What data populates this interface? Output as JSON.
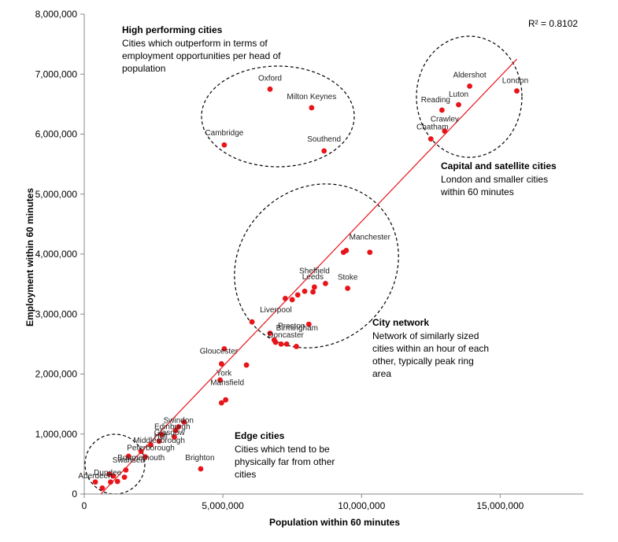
{
  "chart_data": {
    "type": "scatter",
    "xlabel": "Population within 60 minutes",
    "ylabel": "Employment within 60 minutes",
    "xlim": [
      0,
      18000000
    ],
    "ylim": [
      0,
      8000000
    ],
    "x_ticks": [
      0,
      5000000,
      10000000,
      15000000
    ],
    "x_tick_labels": [
      "0",
      "5,000,000",
      "10,000,000",
      "15,000,000"
    ],
    "y_ticks": [
      0,
      1000000,
      2000000,
      3000000,
      4000000,
      5000000,
      6000000,
      7000000,
      8000000
    ],
    "y_tick_labels": [
      "0",
      "1,000,000",
      "2,000,000",
      "3,000,000",
      "4,000,000",
      "5,000,000",
      "6,000,000",
      "7,000,000",
      "8,000,000"
    ],
    "grid": false,
    "marker_color": "#e8141a",
    "trendline_color": "#e8141a",
    "trendline": {
      "x1": 600000,
      "y1": 0,
      "x2": 15600000,
      "y2": 7250000
    },
    "r_squared": "R² = 0.8102",
    "points": [
      {
        "label": "London",
        "x": 15600000,
        "y": 6720000
      },
      {
        "label": "Aldershot",
        "x": 13900000,
        "y": 6800000
      },
      {
        "label": "Luton",
        "x": 13500000,
        "y": 6490000
      },
      {
        "label": "Reading",
        "x": 12900000,
        "y": 6400000
      },
      {
        "label": "Crawley",
        "x": 13000000,
        "y": 6050000
      },
      {
        "label": "Chatham",
        "x": 12500000,
        "y": 5920000
      },
      {
        "label": "Oxford",
        "x": 6700000,
        "y": 6750000
      },
      {
        "label": "Milton Keynes",
        "x": 8200000,
        "y": 6440000
      },
      {
        "label": "Cambridge",
        "x": 5050000,
        "y": 5820000
      },
      {
        "label": "Southend",
        "x": 8650000,
        "y": 5720000
      },
      {
        "label": "Manchester",
        "x": 10300000,
        "y": 4030000
      },
      {
        "label": "",
        "x": 9450000,
        "y": 4060000
      },
      {
        "label": "",
        "x": 9350000,
        "y": 4030000
      },
      {
        "label": "Stoke",
        "x": 9500000,
        "y": 3430000
      },
      {
        "label": "Sheffield",
        "x": 8700000,
        "y": 3510000
      },
      {
        "label": "Leeds",
        "x": 8300000,
        "y": 3450000
      },
      {
        "label": "",
        "x": 8250000,
        "y": 3370000
      },
      {
        "label": "",
        "x": 7950000,
        "y": 3380000
      },
      {
        "label": "",
        "x": 7700000,
        "y": 3320000
      },
      {
        "label": "",
        "x": 7500000,
        "y": 3240000
      },
      {
        "label": "",
        "x": 7250000,
        "y": 3260000
      },
      {
        "label": "Liverpool",
        "x": 6050000,
        "y": 2870000
      },
      {
        "label": "Preston",
        "x": 6700000,
        "y": 2680000
      },
      {
        "label": "Doncaster",
        "x": 6850000,
        "y": 2570000
      },
      {
        "label": "",
        "x": 6900000,
        "y": 2530000
      },
      {
        "label": "Birmingham",
        "x": 8100000,
        "y": 2830000
      },
      {
        "label": "",
        "x": 7100000,
        "y": 2500000
      },
      {
        "label": "",
        "x": 7300000,
        "y": 2500000
      },
      {
        "label": "",
        "x": 7650000,
        "y": 2460000
      },
      {
        "label": "Gloucester",
        "x": 5050000,
        "y": 2420000
      },
      {
        "label": "York",
        "x": 4950000,
        "y": 2170000
      },
      {
        "label": "",
        "x": 5850000,
        "y": 2150000
      },
      {
        "label": "",
        "x": 4900000,
        "y": 1900000
      },
      {
        "label": "Mansfield",
        "x": 5100000,
        "y": 1570000
      },
      {
        "label": "",
        "x": 4950000,
        "y": 1520000
      },
      {
        "label": "Swindon",
        "x": 3600000,
        "y": 1200000
      },
      {
        "label": "Edinburgh",
        "x": 3400000,
        "y": 1120000
      },
      {
        "label": "Glasgow",
        "x": 3300000,
        "y": 1060000
      },
      {
        "label": "Hull",
        "x": 2800000,
        "y": 990000
      },
      {
        "label": "",
        "x": 3250000,
        "y": 950000
      },
      {
        "label": "Middlesbrough",
        "x": 2700000,
        "y": 880000
      },
      {
        "label": "Peterborough",
        "x": 2400000,
        "y": 820000
      },
      {
        "label": "Bournemouth",
        "x": 2050000,
        "y": 710000
      },
      {
        "label": "Swansea",
        "x": 1600000,
        "y": 630000
      },
      {
        "label": "",
        "x": 2200000,
        "y": 620000
      },
      {
        "label": "Dundee",
        "x": 900000,
        "y": 330000
      },
      {
        "label": "",
        "x": 1500000,
        "y": 400000
      },
      {
        "label": "",
        "x": 1050000,
        "y": 300000
      },
      {
        "label": "",
        "x": 1450000,
        "y": 280000
      },
      {
        "label": "",
        "x": 1200000,
        "y": 210000
      },
      {
        "label": "",
        "x": 950000,
        "y": 200000
      },
      {
        "label": "Aberdeen",
        "x": 400000,
        "y": 200000
      },
      {
        "label": "",
        "x": 650000,
        "y": 100000
      },
      {
        "label": "Brighton",
        "x": 4200000,
        "y": 420000
      }
    ],
    "annotations": [
      {
        "title": "High performing cities",
        "lines": [
          "Cities which outperform in terms of",
          "employment opportunities per head of",
          "population"
        ]
      },
      {
        "title": "Capital and satellite cities",
        "lines": [
          "London and smaller cities",
          "within 60 minutes"
        ]
      },
      {
        "title": "City network",
        "lines": [
          "Network of similarly sized",
          "cities within an hour of each",
          "other, typically peak ring",
          "area"
        ]
      },
      {
        "title": "Edge cities",
        "lines": [
          "Cities which tend to be",
          "physically far from other",
          "cities"
        ]
      }
    ]
  }
}
